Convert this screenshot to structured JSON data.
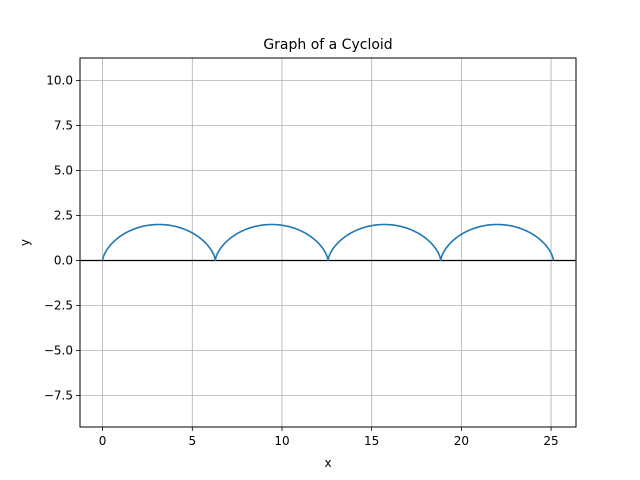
{
  "chart_data": {
    "type": "line",
    "title": "Graph of a Cycloid",
    "xlabel": "x",
    "ylabel": "y",
    "xlim": [
      -1.26,
      26.39
    ],
    "ylim": [
      -9.25,
      11.25
    ],
    "xticks": [
      0,
      5,
      10,
      15,
      20,
      25
    ],
    "xtick_labels": [
      "0",
      "5",
      "10",
      "15",
      "20",
      "25"
    ],
    "yticks": [
      -7.5,
      -5.0,
      -2.5,
      0.0,
      2.5,
      5.0,
      7.5,
      10.0
    ],
    "ytick_labels": [
      "−7.5",
      "−5.0",
      "−2.5",
      "0.0",
      "2.5",
      "5.0",
      "7.5",
      "10.0"
    ],
    "grid": true,
    "series": [
      {
        "curve": "cycloid",
        "radius": 1,
        "t_range": [
          0,
          25.1327
        ],
        "color": "#1f77b4"
      }
    ],
    "reference_lines": [
      {
        "orientation": "horizontal",
        "y": 0,
        "color": "#000000"
      }
    ]
  }
}
